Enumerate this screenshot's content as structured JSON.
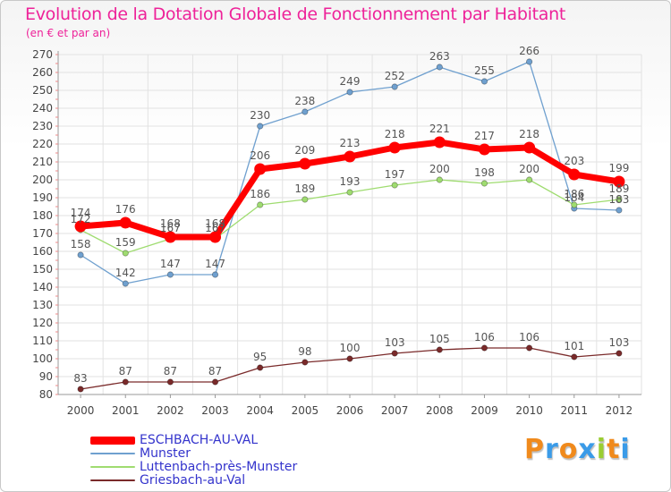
{
  "header": {
    "title": "Evolution de la Dotation Globale de Fonctionnement par Habitant",
    "subtitle": "(en € et par an)"
  },
  "brand": {
    "letters": [
      "P",
      "r",
      "o",
      "x",
      "i",
      "t",
      "i"
    ],
    "colors": [
      "#f08a1c",
      "#3a9be8",
      "#f08a1c",
      "#3a9be8",
      "#9acd32",
      "#f08a1c",
      "#3a9be8"
    ]
  },
  "chart_data": {
    "type": "line",
    "title": "Evolution de la Dotation Globale de Fonctionnement par Habitant",
    "subtitle": "(en € et par an)",
    "xlabel": "",
    "ylabel": "",
    "ylim": [
      80,
      270
    ],
    "y_ticks": [
      80,
      90,
      100,
      110,
      120,
      130,
      140,
      150,
      160,
      170,
      180,
      190,
      200,
      210,
      220,
      230,
      240,
      250,
      260,
      270
    ],
    "grid": true,
    "legend_position": "bottom-left",
    "categories": [
      "2000",
      "2001",
      "2002",
      "2003",
      "2004",
      "2005",
      "2006",
      "2007",
      "2008",
      "2009",
      "2010",
      "2011",
      "2012"
    ],
    "series": [
      {
        "name": "ESCHBACH-AU-VAL",
        "color": "#ff0000",
        "emphasis": true,
        "values": [
          174,
          176,
          168,
          168,
          206,
          209,
          213,
          218,
          221,
          217,
          218,
          203,
          199
        ]
      },
      {
        "name": "Munster",
        "color": "#6fa0cf",
        "emphasis": false,
        "values": [
          158,
          142,
          147,
          147,
          230,
          238,
          249,
          252,
          263,
          255,
          266,
          184,
          183
        ]
      },
      {
        "name": "Luttenbach-près-Munster",
        "color": "#9fdc70",
        "emphasis": false,
        "values": [
          172,
          159,
          167,
          167,
          186,
          189,
          193,
          197,
          200,
          198,
          200,
          186,
          189
        ]
      },
      {
        "name": "Griesbach-au-Val",
        "color": "#7a2a2a",
        "emphasis": false,
        "values": [
          83,
          87,
          87,
          87,
          95,
          98,
          100,
          103,
          105,
          106,
          106,
          101,
          103
        ]
      }
    ]
  }
}
